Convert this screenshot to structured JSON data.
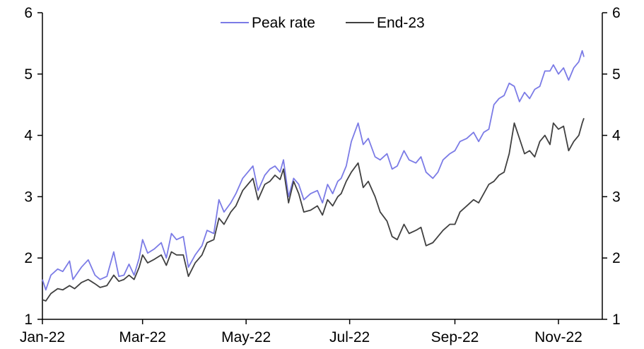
{
  "chart_data": {
    "type": "line",
    "title": "",
    "xlabel": "",
    "ylabel": "",
    "ylim": [
      1,
      6
    ],
    "y_ticks": [
      "1",
      "2",
      "3",
      "4",
      "5",
      "6"
    ],
    "x_ticks": [
      "Jan-22",
      "Mar-22",
      "May-22",
      "Jul-22",
      "Sep-22",
      "Nov-22"
    ],
    "x_tick_dates": [
      "2022-01-01",
      "2022-03-01",
      "2022-05-01",
      "2022-07-01",
      "2022-09-01",
      "2022-11-01"
    ],
    "dual_y_axis": true,
    "grid": false,
    "legend": {
      "position": "top-center"
    },
    "series": [
      {
        "name": "Peak rate",
        "color": "#7b7be6",
        "points": [
          [
            "2022-01-01",
            1.65
          ],
          [
            "2022-01-03",
            1.48
          ],
          [
            "2022-01-06",
            1.72
          ],
          [
            "2022-01-10",
            1.82
          ],
          [
            "2022-01-13",
            1.78
          ],
          [
            "2022-01-17",
            1.95
          ],
          [
            "2022-01-19",
            1.65
          ],
          [
            "2022-01-24",
            1.85
          ],
          [
            "2022-01-28",
            1.97
          ],
          [
            "2022-02-01",
            1.72
          ],
          [
            "2022-02-04",
            1.65
          ],
          [
            "2022-02-08",
            1.7
          ],
          [
            "2022-02-12",
            2.1
          ],
          [
            "2022-02-15",
            1.7
          ],
          [
            "2022-02-18",
            1.72
          ],
          [
            "2022-02-21",
            1.9
          ],
          [
            "2022-02-24",
            1.72
          ],
          [
            "2022-02-27",
            2.0
          ],
          [
            "2022-03-01",
            2.3
          ],
          [
            "2022-03-04",
            2.08
          ],
          [
            "2022-03-08",
            2.15
          ],
          [
            "2022-03-12",
            2.25
          ],
          [
            "2022-03-15",
            2.0
          ],
          [
            "2022-03-18",
            2.4
          ],
          [
            "2022-03-21",
            2.3
          ],
          [
            "2022-03-25",
            2.35
          ],
          [
            "2022-03-28",
            1.85
          ],
          [
            "2022-04-01",
            2.05
          ],
          [
            "2022-04-05",
            2.2
          ],
          [
            "2022-04-08",
            2.45
          ],
          [
            "2022-04-12",
            2.4
          ],
          [
            "2022-04-15",
            2.95
          ],
          [
            "2022-04-18",
            2.75
          ],
          [
            "2022-04-22",
            2.9
          ],
          [
            "2022-04-25",
            3.05
          ],
          [
            "2022-04-29",
            3.3
          ],
          [
            "2022-05-02",
            3.4
          ],
          [
            "2022-05-05",
            3.5
          ],
          [
            "2022-05-08",
            3.1
          ],
          [
            "2022-05-12",
            3.35
          ],
          [
            "2022-05-15",
            3.45
          ],
          [
            "2022-05-18",
            3.5
          ],
          [
            "2022-05-21",
            3.4
          ],
          [
            "2022-05-23",
            3.6
          ],
          [
            "2022-05-26",
            3.0
          ],
          [
            "2022-05-29",
            3.3
          ],
          [
            "2022-06-01",
            3.2
          ],
          [
            "2022-06-04",
            2.95
          ],
          [
            "2022-06-08",
            3.05
          ],
          [
            "2022-06-12",
            3.1
          ],
          [
            "2022-06-15",
            2.9
          ],
          [
            "2022-06-18",
            3.2
          ],
          [
            "2022-06-21",
            3.05
          ],
          [
            "2022-06-24",
            3.25
          ],
          [
            "2022-06-26",
            3.3
          ],
          [
            "2022-06-29",
            3.5
          ],
          [
            "2022-07-02",
            3.9
          ],
          [
            "2022-07-06",
            4.2
          ],
          [
            "2022-07-09",
            3.85
          ],
          [
            "2022-07-12",
            3.95
          ],
          [
            "2022-07-16",
            3.65
          ],
          [
            "2022-07-19",
            3.6
          ],
          [
            "2022-07-23",
            3.7
          ],
          [
            "2022-07-26",
            3.45
          ],
          [
            "2022-07-29",
            3.5
          ],
          [
            "2022-08-02",
            3.75
          ],
          [
            "2022-08-05",
            3.6
          ],
          [
            "2022-08-09",
            3.55
          ],
          [
            "2022-08-12",
            3.65
          ],
          [
            "2022-08-15",
            3.4
          ],
          [
            "2022-08-19",
            3.3
          ],
          [
            "2022-08-22",
            3.4
          ],
          [
            "2022-08-25",
            3.6
          ],
          [
            "2022-08-29",
            3.7
          ],
          [
            "2022-09-01",
            3.75
          ],
          [
            "2022-09-04",
            3.9
          ],
          [
            "2022-09-08",
            3.95
          ],
          [
            "2022-09-12",
            4.05
          ],
          [
            "2022-09-15",
            3.9
          ],
          [
            "2022-09-18",
            4.05
          ],
          [
            "2022-09-21",
            4.1
          ],
          [
            "2022-09-24",
            4.5
          ],
          [
            "2022-09-27",
            4.6
          ],
          [
            "2022-09-30",
            4.65
          ],
          [
            "2022-10-03",
            4.85
          ],
          [
            "2022-10-06",
            4.8
          ],
          [
            "2022-10-09",
            4.55
          ],
          [
            "2022-10-12",
            4.7
          ],
          [
            "2022-10-15",
            4.6
          ],
          [
            "2022-10-18",
            4.75
          ],
          [
            "2022-10-21",
            4.8
          ],
          [
            "2022-10-24",
            5.05
          ],
          [
            "2022-10-27",
            5.05
          ],
          [
            "2022-10-29",
            5.15
          ],
          [
            "2022-11-01",
            5.0
          ],
          [
            "2022-11-04",
            5.1
          ],
          [
            "2022-11-07",
            4.9
          ],
          [
            "2022-11-10",
            5.1
          ],
          [
            "2022-11-13",
            5.2
          ],
          [
            "2022-11-15",
            5.38
          ],
          [
            "2022-11-16",
            5.28
          ]
        ]
      },
      {
        "name": "End-23",
        "color": "#404040",
        "points": [
          [
            "2022-01-01",
            1.32
          ],
          [
            "2022-01-03",
            1.3
          ],
          [
            "2022-01-06",
            1.42
          ],
          [
            "2022-01-10",
            1.5
          ],
          [
            "2022-01-13",
            1.48
          ],
          [
            "2022-01-17",
            1.55
          ],
          [
            "2022-01-20",
            1.5
          ],
          [
            "2022-01-24",
            1.6
          ],
          [
            "2022-01-28",
            1.65
          ],
          [
            "2022-02-01",
            1.58
          ],
          [
            "2022-02-04",
            1.52
          ],
          [
            "2022-02-08",
            1.55
          ],
          [
            "2022-02-12",
            1.72
          ],
          [
            "2022-02-15",
            1.62
          ],
          [
            "2022-02-18",
            1.65
          ],
          [
            "2022-02-21",
            1.72
          ],
          [
            "2022-02-24",
            1.65
          ],
          [
            "2022-02-27",
            1.85
          ],
          [
            "2022-03-01",
            2.05
          ],
          [
            "2022-03-04",
            1.92
          ],
          [
            "2022-03-08",
            1.98
          ],
          [
            "2022-03-12",
            2.05
          ],
          [
            "2022-03-15",
            1.88
          ],
          [
            "2022-03-18",
            2.1
          ],
          [
            "2022-03-21",
            2.05
          ],
          [
            "2022-03-25",
            2.05
          ],
          [
            "2022-03-28",
            1.7
          ],
          [
            "2022-04-01",
            1.92
          ],
          [
            "2022-04-05",
            2.05
          ],
          [
            "2022-04-08",
            2.25
          ],
          [
            "2022-04-12",
            2.3
          ],
          [
            "2022-04-15",
            2.65
          ],
          [
            "2022-04-18",
            2.55
          ],
          [
            "2022-04-22",
            2.75
          ],
          [
            "2022-04-25",
            2.85
          ],
          [
            "2022-04-29",
            3.1
          ],
          [
            "2022-05-02",
            3.2
          ],
          [
            "2022-05-05",
            3.3
          ],
          [
            "2022-05-08",
            2.95
          ],
          [
            "2022-05-12",
            3.2
          ],
          [
            "2022-05-15",
            3.25
          ],
          [
            "2022-05-18",
            3.35
          ],
          [
            "2022-05-21",
            3.28
          ],
          [
            "2022-05-23",
            3.45
          ],
          [
            "2022-05-26",
            2.9
          ],
          [
            "2022-05-29",
            3.25
          ],
          [
            "2022-06-01",
            3.05
          ],
          [
            "2022-06-04",
            2.75
          ],
          [
            "2022-06-08",
            2.78
          ],
          [
            "2022-06-12",
            2.85
          ],
          [
            "2022-06-15",
            2.7
          ],
          [
            "2022-06-18",
            2.95
          ],
          [
            "2022-06-21",
            2.85
          ],
          [
            "2022-06-24",
            3.0
          ],
          [
            "2022-06-26",
            3.05
          ],
          [
            "2022-06-29",
            3.25
          ],
          [
            "2022-07-02",
            3.4
          ],
          [
            "2022-07-06",
            3.55
          ],
          [
            "2022-07-09",
            3.15
          ],
          [
            "2022-07-12",
            3.25
          ],
          [
            "2022-07-16",
            3.0
          ],
          [
            "2022-07-19",
            2.75
          ],
          [
            "2022-07-23",
            2.6
          ],
          [
            "2022-07-26",
            2.35
          ],
          [
            "2022-07-29",
            2.3
          ],
          [
            "2022-08-02",
            2.55
          ],
          [
            "2022-08-05",
            2.4
          ],
          [
            "2022-08-09",
            2.45
          ],
          [
            "2022-08-12",
            2.5
          ],
          [
            "2022-08-15",
            2.2
          ],
          [
            "2022-08-19",
            2.25
          ],
          [
            "2022-08-22",
            2.35
          ],
          [
            "2022-08-25",
            2.45
          ],
          [
            "2022-08-29",
            2.55
          ],
          [
            "2022-09-01",
            2.55
          ],
          [
            "2022-09-04",
            2.75
          ],
          [
            "2022-09-08",
            2.85
          ],
          [
            "2022-09-12",
            2.95
          ],
          [
            "2022-09-15",
            2.9
          ],
          [
            "2022-09-18",
            3.05
          ],
          [
            "2022-09-21",
            3.2
          ],
          [
            "2022-09-24",
            3.25
          ],
          [
            "2022-09-27",
            3.35
          ],
          [
            "2022-09-30",
            3.4
          ],
          [
            "2022-10-03",
            3.7
          ],
          [
            "2022-10-06",
            4.2
          ],
          [
            "2022-10-09",
            3.95
          ],
          [
            "2022-10-12",
            3.7
          ],
          [
            "2022-10-15",
            3.75
          ],
          [
            "2022-10-18",
            3.65
          ],
          [
            "2022-10-21",
            3.9
          ],
          [
            "2022-10-24",
            4.0
          ],
          [
            "2022-10-27",
            3.85
          ],
          [
            "2022-10-29",
            4.2
          ],
          [
            "2022-11-01",
            4.1
          ],
          [
            "2022-11-04",
            4.15
          ],
          [
            "2022-11-07",
            3.75
          ],
          [
            "2022-11-10",
            3.9
          ],
          [
            "2022-11-13",
            4.0
          ],
          [
            "2022-11-15",
            4.2
          ],
          [
            "2022-11-16",
            4.28
          ]
        ]
      }
    ]
  }
}
